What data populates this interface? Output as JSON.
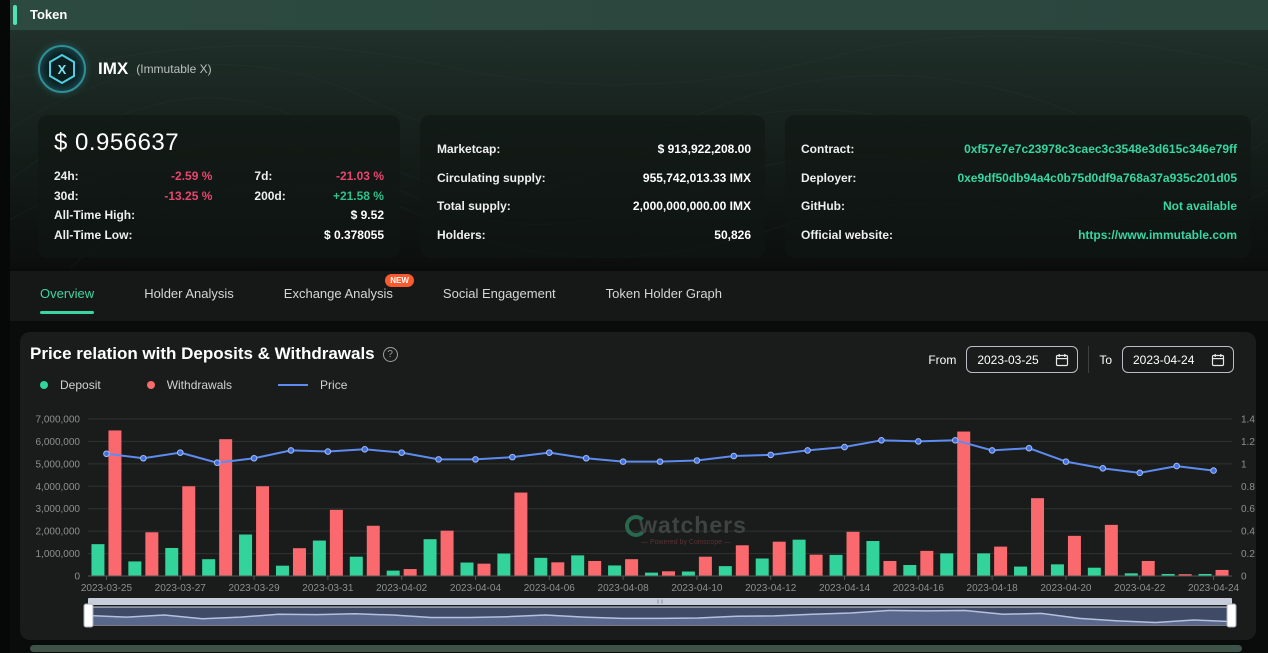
{
  "topbar": {
    "title": "Token"
  },
  "token": {
    "symbol": "IMX",
    "name": "(Immutable X)",
    "logo_letter": "X"
  },
  "price_card": {
    "price": "$ 0.956637",
    "rows": [
      {
        "label": "24h:",
        "value": "-2.59 %",
        "tone": "neg"
      },
      {
        "label": "7d:",
        "value": "-21.03 %",
        "tone": "neg"
      },
      {
        "label": "30d:",
        "value": "-13.25 %",
        "tone": "neg"
      },
      {
        "label": "200d:",
        "value": "+21.58 %",
        "tone": "pos"
      },
      {
        "label": "All-Time High:",
        "value": "$ 9.52",
        "tone": "plain"
      },
      {
        "label": "All-Time Low:",
        "value": "$ 0.378055",
        "tone": "plain"
      }
    ]
  },
  "supply_card": {
    "rows": [
      {
        "label": "Marketcap:",
        "value": "$ 913,922,208.00"
      },
      {
        "label": "Circulating supply:",
        "value": "955,742,013.33 IMX"
      },
      {
        "label": "Total supply:",
        "value": "2,000,000,000.00 IMX"
      },
      {
        "label": "Holders:",
        "value": "50,826"
      }
    ]
  },
  "links_card": {
    "rows": [
      {
        "label": "Contract:",
        "value": "0xf57e7e7c23978c3caec3c3548e3d615c346e79ff"
      },
      {
        "label": "Deployer:",
        "value": "0xe9df50db94a4c0b75d0df9a768a37a935c201d05"
      },
      {
        "label": "GitHub:",
        "value": "Not available"
      },
      {
        "label": "Official website:",
        "value": "https://www.immutable.com"
      }
    ]
  },
  "tabs": [
    {
      "label": "Overview",
      "active": true
    },
    {
      "label": "Holder Analysis",
      "active": false
    },
    {
      "label": "Exchange Analysis",
      "active": false,
      "badge": "NEW"
    },
    {
      "label": "Social Engagement",
      "active": false
    },
    {
      "label": "Token Holder Graph",
      "active": false
    }
  ],
  "chart": {
    "title": "Price relation with Deposits & Withdrawals",
    "help": "?",
    "from_label": "From",
    "from_value": "2023-03-25",
    "to_label": "To",
    "to_value": "2023-04-24"
  },
  "watermark": {
    "text": "watchers",
    "subtext": "— Powered by Coinscope —"
  },
  "chart_data": {
    "type": "bar",
    "categories": [
      "2023-03-25",
      "2023-03-26",
      "2023-03-27",
      "2023-03-28",
      "2023-03-29",
      "2023-03-30",
      "2023-03-31",
      "2023-04-01",
      "2023-04-02",
      "2023-04-03",
      "2023-04-04",
      "2023-04-05",
      "2023-04-06",
      "2023-04-07",
      "2023-04-08",
      "2023-04-09",
      "2023-04-10",
      "2023-04-11",
      "2023-04-12",
      "2023-04-13",
      "2023-04-14",
      "2023-04-15",
      "2023-04-16",
      "2023-04-17",
      "2023-04-18",
      "2023-04-19",
      "2023-04-20",
      "2023-04-21",
      "2023-04-22",
      "2023-04-23",
      "2023-04-24"
    ],
    "series": [
      {
        "name": "Deposit",
        "type": "bar",
        "axis": "left",
        "color": "#33d39c",
        "values": [
          1420000,
          650000,
          1250000,
          750000,
          1850000,
          460000,
          1580000,
          860000,
          240000,
          1640000,
          600000,
          1000000,
          810000,
          920000,
          470000,
          150000,
          200000,
          440000,
          780000,
          1620000,
          940000,
          1560000,
          490000,
          1010000,
          1010000,
          420000,
          520000,
          370000,
          120000,
          90000,
          90000
        ]
      },
      {
        "name": "Withdrawals",
        "type": "bar",
        "axis": "left",
        "color": "#f9696e",
        "values": [
          6490000,
          1950000,
          4000000,
          6100000,
          4000000,
          1240000,
          2950000,
          2240000,
          310000,
          2020000,
          550000,
          3720000,
          610000,
          670000,
          750000,
          210000,
          860000,
          1370000,
          1530000,
          950000,
          1970000,
          670000,
          1120000,
          6440000,
          1310000,
          3470000,
          1790000,
          2280000,
          670000,
          80000,
          270000
        ]
      },
      {
        "name": "Price",
        "type": "line",
        "axis": "right",
        "color": "#5e8bf0",
        "values": [
          1.09,
          1.05,
          1.1,
          1.01,
          1.05,
          1.12,
          1.11,
          1.13,
          1.1,
          1.04,
          1.04,
          1.06,
          1.1,
          1.05,
          1.02,
          1.02,
          1.03,
          1.07,
          1.08,
          1.12,
          1.15,
          1.21,
          1.2,
          1.21,
          1.12,
          1.14,
          1.02,
          0.96,
          0.92,
          0.98,
          0.94
        ]
      }
    ],
    "left_axis": {
      "min": 0,
      "max": 7000000,
      "tick_labels": [
        "0",
        "1,000,000",
        "2,000,000",
        "3,000,000",
        "4,000,000",
        "5,000,000",
        "6,000,000",
        "7,000,000"
      ]
    },
    "right_axis": {
      "min": 0,
      "max": 1.4,
      "tick_labels": [
        "0",
        "0.2",
        "0.4",
        "0.6",
        "0.8",
        "1",
        "1.2",
        "1.4"
      ]
    },
    "x_label_every": 2,
    "grid": true,
    "legend_position": "top-left"
  }
}
